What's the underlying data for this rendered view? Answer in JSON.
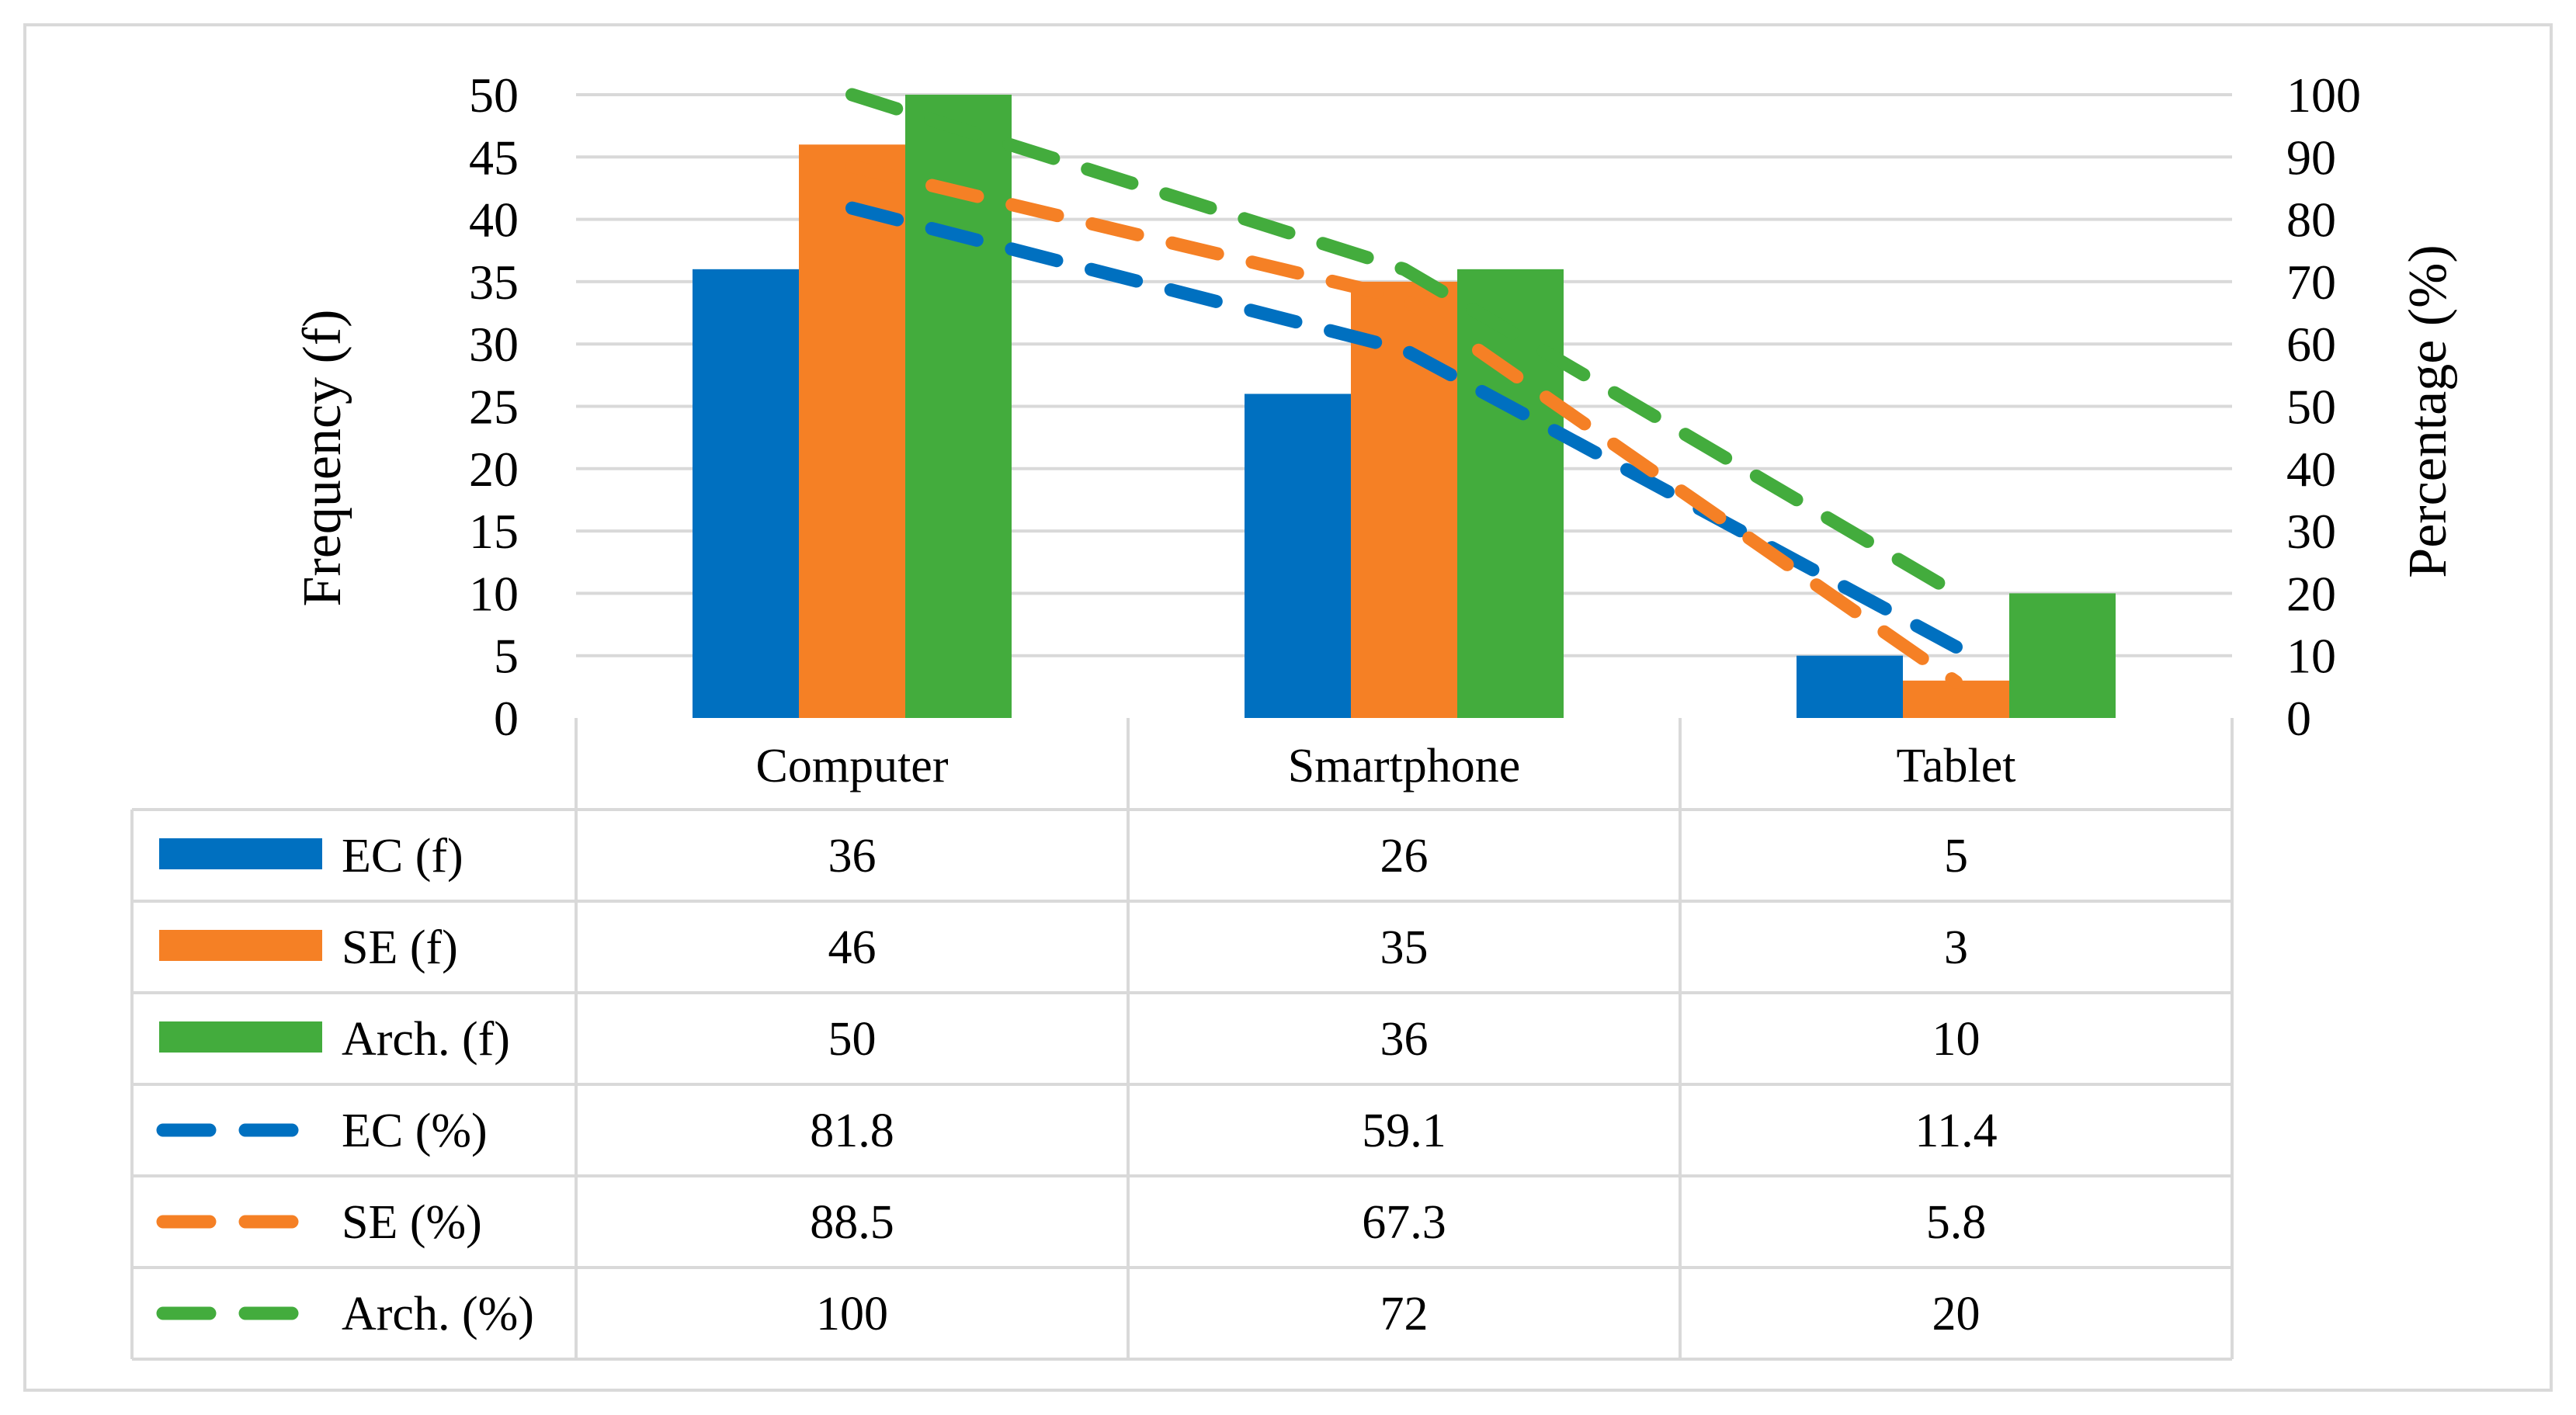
{
  "chart_data": {
    "type": "bar",
    "categories": [
      "Computer",
      "Smartphone",
      "Tablet"
    ],
    "series": [
      {
        "name": "EC (f)",
        "kind": "bar",
        "axis": "left",
        "color": "#0070C0",
        "values": [
          36,
          26,
          5
        ],
        "display": [
          "36",
          "26",
          "5"
        ]
      },
      {
        "name": "SE (f)",
        "kind": "bar",
        "axis": "left",
        "color": "#F58025",
        "values": [
          46,
          35,
          3
        ],
        "display": [
          "46",
          "35",
          "3"
        ]
      },
      {
        "name": "Arch. (f)",
        "kind": "bar",
        "axis": "left",
        "color": "#43AC3D",
        "values": [
          50,
          36,
          10
        ],
        "display": [
          "50",
          "36",
          "10"
        ]
      },
      {
        "name": "EC (%)",
        "kind": "line-dashed",
        "axis": "right",
        "color": "#0070C0",
        "values": [
          81.8,
          59.1,
          11.4
        ],
        "display": [
          "81.8",
          "59.1",
          "11.4"
        ]
      },
      {
        "name": "SE (%)",
        "kind": "line-dashed",
        "axis": "right",
        "color": "#F58025",
        "values": [
          88.5,
          67.3,
          5.8
        ],
        "display": [
          "88.5",
          "67.3",
          "5.8"
        ]
      },
      {
        "name": "Arch. (%)",
        "kind": "line-dashed",
        "axis": "right",
        "color": "#43AC3D",
        "values": [
          100,
          72,
          20
        ],
        "display": [
          "100",
          "72",
          "20"
        ]
      }
    ],
    "ylabel": "Frequency (f)",
    "y2label": "Percentage (%)",
    "ylim": [
      0,
      50
    ],
    "y2lim": [
      0,
      100
    ],
    "yticks": [
      "0",
      "5",
      "10",
      "15",
      "20",
      "25",
      "30",
      "35",
      "40",
      "45",
      "50"
    ],
    "y2ticks": [
      "0",
      "10",
      "20",
      "30",
      "40",
      "50",
      "60",
      "70",
      "80",
      "90",
      "100"
    ],
    "grid": true,
    "legend": "data-table"
  }
}
